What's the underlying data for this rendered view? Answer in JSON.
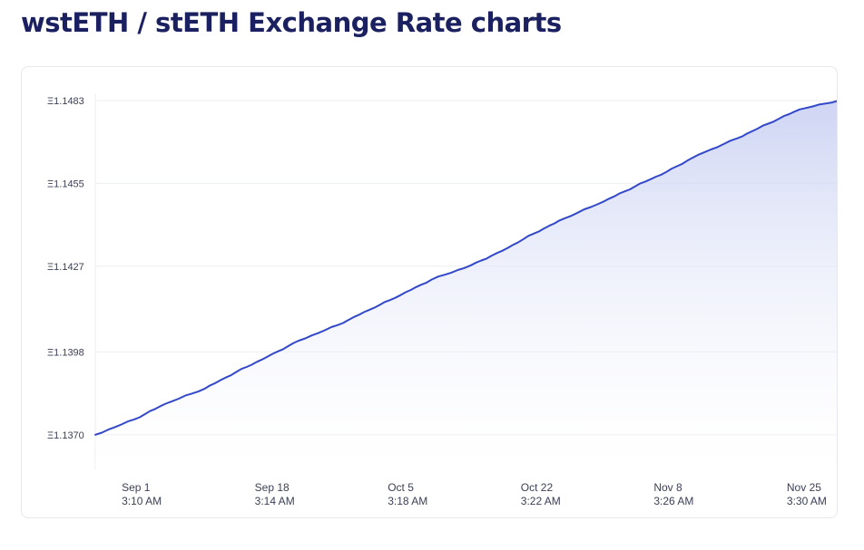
{
  "page": {
    "title": "wstETH / stETH Exchange Rate charts"
  },
  "colors": {
    "title": "#1b2160",
    "line": "#3348c8",
    "area_top": "#c9d0f2",
    "area_bottom": "#ffffff",
    "grid": "#eceef3"
  },
  "chart_data": {
    "type": "area",
    "title": "",
    "xlabel": "",
    "ylabel": "",
    "y_tick_prefix": "Ξ",
    "y_ticks": [
      1.137,
      1.1398,
      1.1427,
      1.1455,
      1.1483
    ],
    "y_tick_labels": [
      "Ξ1.1370",
      "Ξ1.1398",
      "Ξ1.1427",
      "Ξ1.1455",
      "Ξ1.1483"
    ],
    "ylim": [
      1.1359,
      1.1483
    ],
    "x_ticks": [
      {
        "date": "Sep 1",
        "time": "3:10 AM"
      },
      {
        "date": "Sep 18",
        "time": "3:14 AM"
      },
      {
        "date": "Oct 5",
        "time": "3:18 AM"
      },
      {
        "date": "Oct 22",
        "time": "3:22 AM"
      },
      {
        "date": "Nov 8",
        "time": "3:26 AM"
      },
      {
        "date": "Nov 25",
        "time": "3:30 AM"
      }
    ],
    "x_tick_positions": [
      "Sep 1",
      "Sep 18",
      "Oct 5",
      "Oct 22",
      "Nov 8",
      "Nov 25"
    ],
    "grid": "horizontal",
    "legend": "none",
    "series": [
      {
        "x": [
          "Aug 27",
          "Sep 1",
          "Sep 5",
          "Sep 10",
          "Sep 14",
          "Sep 18",
          "Sep 22",
          "Sep 27",
          "Oct 1",
          "Oct 5",
          "Oct 9",
          "Oct 14",
          "Oct 18",
          "Oct 22",
          "Oct 26",
          "Oct 31",
          "Nov 4",
          "Nov 8",
          "Nov 12",
          "Nov 17",
          "Nov 21",
          "Nov 25",
          "Nov 30"
        ],
        "values": [
          1.137,
          1.13752,
          1.13805,
          1.13856,
          1.13912,
          1.13964,
          1.14018,
          1.14071,
          1.14122,
          1.14172,
          1.14225,
          1.14273,
          1.14322,
          1.1438,
          1.14432,
          1.14489,
          1.1454,
          1.14589,
          1.14646,
          1.14702,
          1.14752,
          1.148,
          1.1483
        ]
      }
    ]
  }
}
